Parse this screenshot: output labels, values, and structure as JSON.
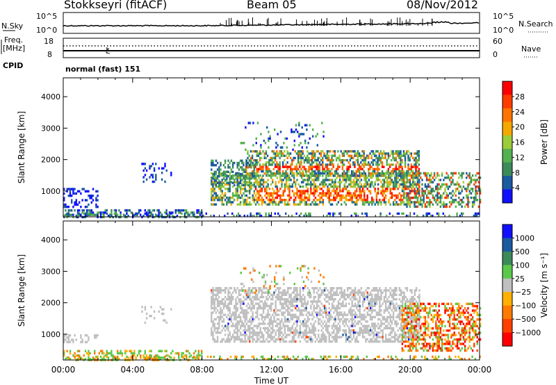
{
  "header": {
    "station": "Stokkseyri (fitACF)",
    "beam": "Beam 05",
    "date": "08/Nov/2012"
  },
  "sky_panel": {
    "left_label": "N.Sky",
    "left_ticks": [
      "10^5",
      "10^0"
    ],
    "right_label": "N.Search",
    "right_ticks": [
      "10^5",
      "10^0"
    ]
  },
  "freq_panel": {
    "left_label_1": "Freq.",
    "left_label_2": "[MHz]",
    "left_ticks": [
      "18",
      "8"
    ],
    "right_label": "Nave",
    "right_ticks": [
      "60",
      "0"
    ]
  },
  "cpid": {
    "label": "CPID",
    "value": "normal (fast) 151"
  },
  "x_axis": {
    "label": "Time UT",
    "ticks": [
      "00:00",
      "04:00",
      "08:00",
      "12:00",
      "16:00",
      "20:00",
      "00:00"
    ]
  },
  "colors": {
    "power_scale": [
      "#1010ff",
      "#1a5aa0",
      "#3c8a5a",
      "#54b050",
      "#9ccc3a",
      "#f5a800",
      "#ff7400",
      "#ff3c00",
      "#ff0000"
    ],
    "velocity_scale": [
      "#1010ff",
      "#1a5aa0",
      "#3c8a5a",
      "#5cc84a",
      "#c0c0c0",
      "#ffb000",
      "#ff7a00",
      "#ff4000",
      "#ff0000"
    ],
    "echo_gray": "#c0c0c0"
  },
  "chart_data": [
    {
      "type": "line",
      "panel": "sky-noise",
      "x_range_hours": [
        0,
        24
      ],
      "ylabel": "N.Sky",
      "y2label": "N.Search",
      "scale": "log"
    },
    {
      "type": "line",
      "panel": "frequency",
      "ylabel": "Freq. [MHz]",
      "y2label": "Nave",
      "yticks": [
        8,
        18
      ],
      "y2ticks": [
        0,
        60
      ],
      "x_range_hours": [
        0,
        24
      ]
    },
    {
      "type": "heatmap",
      "panel": "power",
      "xlabel": "",
      "ylabel": "Slant Range [km]",
      "yticks": [
        1000,
        2000,
        3000,
        4000
      ],
      "ylim": [
        180,
        4600
      ],
      "x_range_hours": [
        0,
        24
      ],
      "colorbar": {
        "label": "Power [dB]",
        "ticks": [
          "4",
          "8",
          "12",
          "16",
          "20",
          "24",
          "28"
        ],
        "range": [
          0,
          30
        ]
      }
    },
    {
      "type": "heatmap",
      "panel": "velocity",
      "xlabel": "Time UT",
      "ylabel": "Slant Range [km]",
      "yticks": [
        1000,
        2000,
        3000,
        4000
      ],
      "ylim": [
        180,
        4600
      ],
      "x_range_hours": [
        0,
        24
      ],
      "colorbar": {
        "label": "Velocity [m s⁻¹]",
        "ticks": [
          "1000",
          "500",
          "100",
          "25",
          "−25",
          "−100",
          "−500",
          "−1000"
        ]
      }
    }
  ]
}
